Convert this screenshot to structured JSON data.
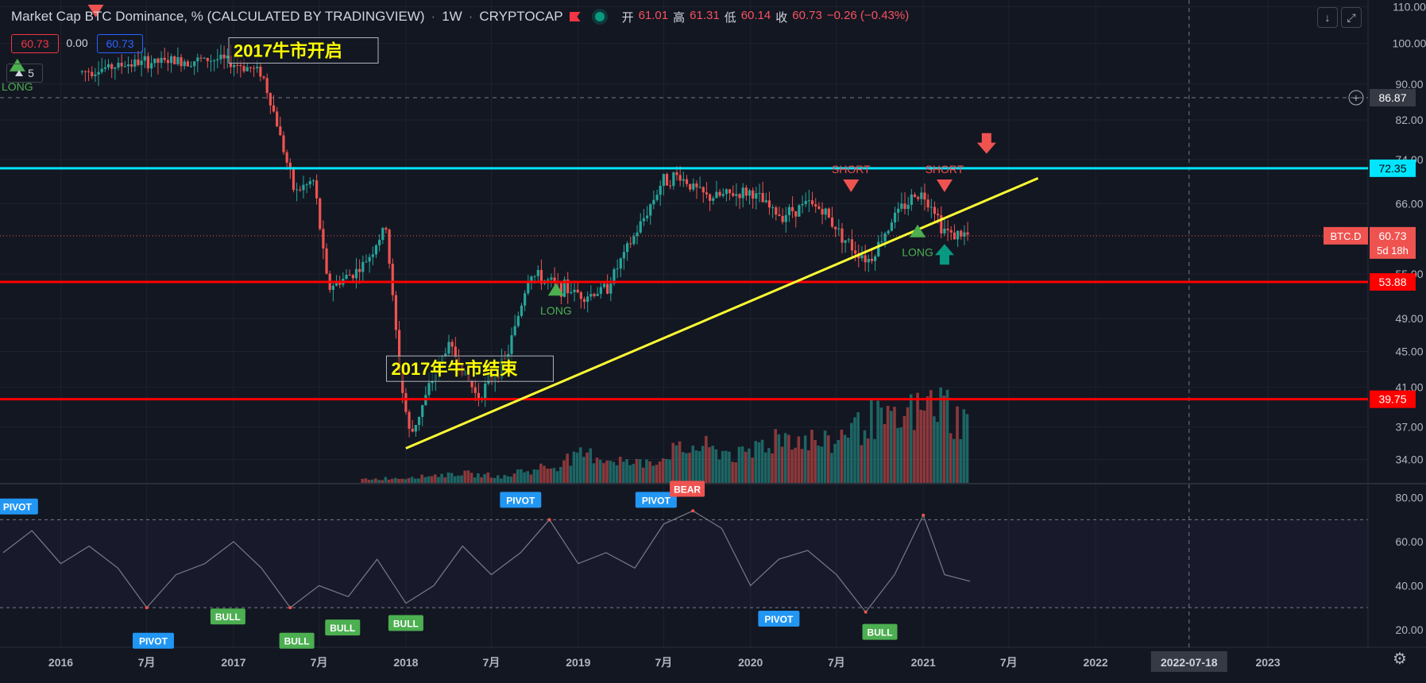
{
  "header": {
    "title": "Market Cap BTC Dominance, % (CALCULATED BY TRADINGVIEW)",
    "interval": "1W",
    "exchange": "CRYPTOCAP",
    "ohlc": {
      "open_label": "开",
      "open": "61.01",
      "high_label": "高",
      "high": "61.31",
      "low_label": "低",
      "low": "60.14",
      "close_label": "收",
      "close": "60.73",
      "change": "−0.26 (−0.43%)"
    }
  },
  "left_badges": {
    "price": "60.73",
    "zero": "0.00",
    "price2": "60.73",
    "counter": "5"
  },
  "toolbar_icons": [
    "arrow-down-icon",
    "fullscreen-icon"
  ],
  "colors": {
    "bg": "#131722",
    "up": "#26a69a",
    "down": "#ef5350",
    "cyan": "#00e5ff",
    "red_line": "#ff0000",
    "trend": "#ffff33",
    "osc": "#787b86"
  },
  "chart_data": [
    {
      "type": "candlestick",
      "title": "Market Cap BTC Dominance, % (CALCULATED BY TRADINGVIEW)",
      "y_scale": "log",
      "ylim": [
        32,
        111
      ],
      "y_ticks": [
        "110.00",
        "100.00",
        "90.00",
        "82.00",
        "74.00",
        "66.00",
        "55.00",
        "49.00",
        "45.00",
        "41.00",
        "37.00",
        "34.00"
      ],
      "x_ticks": [
        "2016",
        "7月",
        "2017",
        "7月",
        "2018",
        "7月",
        "2019",
        "7月",
        "2020",
        "7月",
        "2021",
        "7月",
        "2022",
        "2023"
      ],
      "x_range": [
        "2015-09-01",
        "2023-08-01"
      ],
      "close_path": [
        [
          "2016-01-01",
          92
        ],
        [
          "2016-06-01",
          95
        ],
        [
          "2016-12-01",
          96
        ],
        [
          "2017-03-01",
          93
        ],
        [
          "2017-04-01",
          82
        ],
        [
          "2017-05-10",
          68
        ],
        [
          "2017-06-20",
          70
        ],
        [
          "2017-07-20",
          53
        ],
        [
          "2017-10-01",
          56
        ],
        [
          "2017-11-20",
          62
        ],
        [
          "2017-12-20",
          42
        ],
        [
          "2018-01-10",
          36
        ],
        [
          "2018-02-20",
          41
        ],
        [
          "2018-04-01",
          46
        ],
        [
          "2018-06-01",
          40
        ],
        [
          "2018-08-01",
          44
        ],
        [
          "2018-09-20",
          55
        ],
        [
          "2018-12-01",
          53
        ],
        [
          "2019-01-20",
          52
        ],
        [
          "2019-03-01",
          53
        ],
        [
          "2019-05-10",
          62
        ],
        [
          "2019-06-28",
          70
        ],
        [
          "2019-08-01",
          71
        ],
        [
          "2019-10-01",
          67
        ],
        [
          "2020-01-01",
          68
        ],
        [
          "2020-03-01",
          64
        ],
        [
          "2020-05-01",
          66
        ],
        [
          "2020-06-01",
          65
        ],
        [
          "2020-08-01",
          59
        ],
        [
          "2020-09-10",
          57
        ],
        [
          "2020-11-01",
          64
        ],
        [
          "2020-12-20",
          68
        ],
        [
          "2021-01-20",
          66
        ],
        [
          "2021-02-10",
          62
        ],
        [
          "2021-03-01",
          61
        ],
        [
          "2021-04-10",
          60.73
        ]
      ],
      "horizontal_levels": [
        {
          "value": 72.35,
          "label": "72.35",
          "color": "#00e5ff"
        },
        {
          "value": 53.88,
          "label": "53.88",
          "color": "#ff0000"
        },
        {
          "value": 39.75,
          "label": "39.75",
          "color": "#ff0000"
        },
        {
          "value": 86.87,
          "label": "86.87",
          "color": "#787b86",
          "style": "dashed"
        }
      ],
      "current_price": {
        "symbol": "BTC.D",
        "value": "60.73",
        "countdown": "5d 18h"
      },
      "trendline": {
        "from": [
          "2018-01-01",
          35
        ],
        "to": [
          "2021-09-01",
          70.5
        ],
        "color": "#ffff33"
      },
      "annotations": [
        {
          "text": "2017牛市开启",
          "x": "2017-01-01",
          "y": 97
        },
        {
          "text": "2017年牛市结束",
          "x": "2017-12-01",
          "y": 42.5
        }
      ],
      "signals": [
        {
          "label": "SHORT",
          "x": "2016-03-15",
          "y": 107,
          "dir": "down"
        },
        {
          "label": "LONG",
          "x": "2015-10-01",
          "y": 93,
          "dir": "up"
        },
        {
          "label": "LONG",
          "x": "2018-11-15",
          "y": 52,
          "dir": "up"
        },
        {
          "label": "SHORT",
          "x": "2020-08-01",
          "y": 68,
          "dir": "down"
        },
        {
          "label": "LONG",
          "x": "2020-12-20",
          "y": 60.5,
          "dir": "up"
        },
        {
          "label": "SHORT",
          "x": "2021-02-15",
          "y": 68,
          "dir": "down"
        }
      ],
      "arrows": [
        {
          "x": "2021-05-15",
          "y": 77,
          "dir": "down",
          "color": "#ef5350"
        },
        {
          "x": "2021-02-15",
          "y": 58,
          "dir": "up",
          "color": "#089981"
        }
      ],
      "volume_profile": [
        0.05,
        0.06,
        0.08,
        0.1,
        0.12,
        0.1,
        0.08,
        0.15,
        0.2,
        0.3,
        0.35,
        0.3,
        0.25,
        0.3,
        0.4,
        0.45,
        0.4,
        0.35,
        0.5,
        0.6,
        0.55,
        0.5,
        0.7,
        0.8,
        0.75,
        0.9,
        1.0,
        0.8
      ],
      "date_marker": "2022-07-18"
    },
    {
      "type": "line",
      "ylim": [
        12,
        86
      ],
      "y_ticks": [
        "80.00",
        "60.00",
        "40.00",
        "20.00"
      ],
      "overbought": 70,
      "oversold": 30,
      "x": [
        "2015-09-01",
        "2015-11-01",
        "2016-01-01",
        "2016-03-01",
        "2016-05-01",
        "2016-07-01",
        "2016-09-01",
        "2016-11-01",
        "2017-01-01",
        "2017-03-01",
        "2017-05-01",
        "2017-07-01",
        "2017-09-01",
        "2017-11-01",
        "2018-01-01",
        "2018-03-01",
        "2018-05-01",
        "2018-07-01",
        "2018-09-01",
        "2018-11-01",
        "2019-01-01",
        "2019-03-01",
        "2019-05-01",
        "2019-07-01",
        "2019-09-01",
        "2019-11-01",
        "2020-01-01",
        "2020-03-01",
        "2020-05-01",
        "2020-07-01",
        "2020-09-01",
        "2020-11-01",
        "2021-01-01",
        "2021-02-15",
        "2021-04-10"
      ],
      "values": [
        55,
        65,
        50,
        58,
        48,
        30,
        45,
        50,
        60,
        48,
        30,
        40,
        35,
        52,
        32,
        40,
        58,
        45,
        55,
        70,
        50,
        55,
        48,
        68,
        74,
        66,
        40,
        52,
        56,
        45,
        28,
        45,
        72,
        45,
        42
      ],
      "signals": [
        {
          "label": "PIVOT",
          "x": "2015-10-01",
          "y": 76,
          "color": "#2196f3"
        },
        {
          "label": "PIVOT",
          "x": "2016-07-15",
          "y": 15,
          "color": "#2196f3"
        },
        {
          "label": "BULL",
          "x": "2016-12-20",
          "y": 26,
          "color": "#4caf50"
        },
        {
          "label": "BULL",
          "x": "2017-05-15",
          "y": 15,
          "color": "#4caf50"
        },
        {
          "label": "BULL",
          "x": "2017-08-20",
          "y": 21,
          "color": "#4caf50"
        },
        {
          "label": "BULL",
          "x": "2018-01-01",
          "y": 23,
          "color": "#4caf50"
        },
        {
          "label": "PIVOT",
          "x": "2018-09-01",
          "y": 79,
          "color": "#2196f3"
        },
        {
          "label": "PIVOT",
          "x": "2019-06-15",
          "y": 79,
          "color": "#2196f3"
        },
        {
          "label": "BEAR",
          "x": "2019-08-20",
          "y": 84,
          "color": "#ef5350"
        },
        {
          "label": "PIVOT",
          "x": "2020-03-01",
          "y": 25,
          "color": "#2196f3"
        },
        {
          "label": "BULL",
          "x": "2020-10-01",
          "y": 19,
          "color": "#4caf50"
        }
      ]
    }
  ]
}
